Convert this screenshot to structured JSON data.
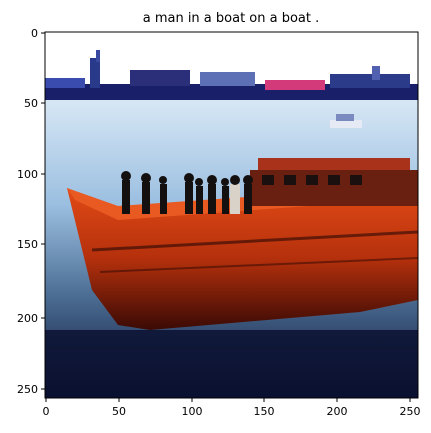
{
  "figure": {
    "title": "a man in a boat on a boat .",
    "x_ticks": [
      "0",
      "50",
      "100",
      "150",
      "200",
      "250"
    ],
    "y_ticks": [
      "0",
      "50",
      "100",
      "150",
      "200",
      "250"
    ],
    "x_range": [
      0,
      256
    ],
    "y_range": [
      0,
      256
    ],
    "image_description_colors": {
      "sky": "#ffffff",
      "water": "#8fb6d6",
      "water_dark": "#0b1030",
      "hull": "#c83a10",
      "hull_dark": "#3a0a05",
      "harbor": "#1a1f6a"
    }
  }
}
